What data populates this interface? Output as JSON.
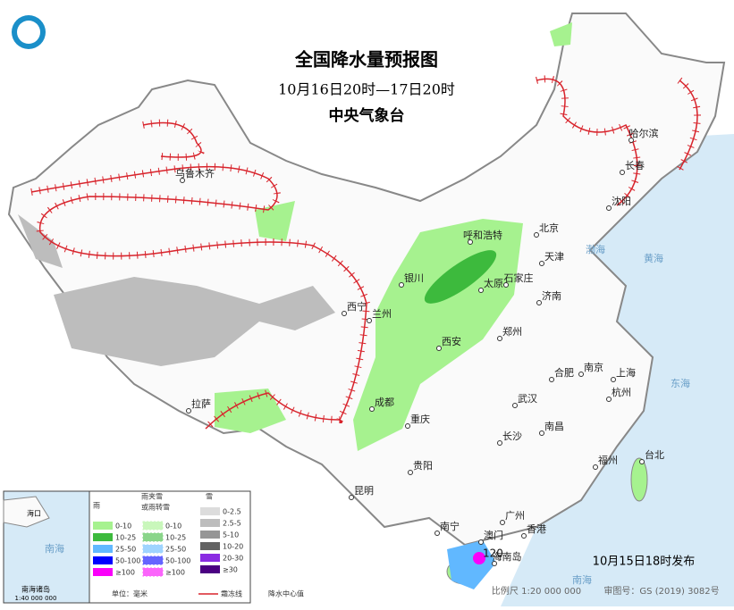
{
  "header": {
    "title": "全国降水量预报图",
    "subtitle": "10月16日20时—17日20时",
    "agency": "中央气象台"
  },
  "cities": [
    "哈尔滨",
    "长春",
    "沈阳",
    "乌鲁木齐",
    "呼和浩特",
    "北京",
    "天津",
    "石家庄",
    "太原",
    "银川",
    "西宁",
    "兰州",
    "济南",
    "郑州",
    "西安",
    "合肥",
    "南京",
    "上海",
    "杭州",
    "武汉",
    "成都",
    "重庆",
    "拉萨",
    "南昌",
    "长沙",
    "福州",
    "台北",
    "贵阳",
    "昆明",
    "南宁",
    "广州",
    "澳门",
    "香港",
    "海南岛"
  ],
  "seas": [
    "渤海",
    "黄海",
    "东海",
    "南海"
  ],
  "center_value": 120,
  "legend": {
    "rain": {
      "title": "雨",
      "items": [
        "0-10",
        "10-25",
        "25-50",
        "50-100",
        "≥100"
      ]
    },
    "sleet": {
      "title": [
        "雨夹雪",
        "或雨转雪"
      ],
      "items": [
        "0-10",
        "10-25",
        "25-50",
        "50-100",
        "≥100"
      ]
    },
    "snow": {
      "title": "雪",
      "items": [
        "0-2.5",
        "2.5-5",
        "5-10",
        "10-20",
        "20-30",
        "≥30"
      ]
    },
    "unit": "单位：毫米",
    "line": "霜冻线",
    "center": "降水中心值"
  },
  "inset": {
    "title": "南海诸岛",
    "scale": "1:40 000 000",
    "labels": [
      "海口",
      "南海"
    ]
  },
  "footer": {
    "issued": "10月15日18时发布",
    "scale": "比例尺 1:20 000 000",
    "approval": "审图号：GS (2019) 3082号"
  }
}
